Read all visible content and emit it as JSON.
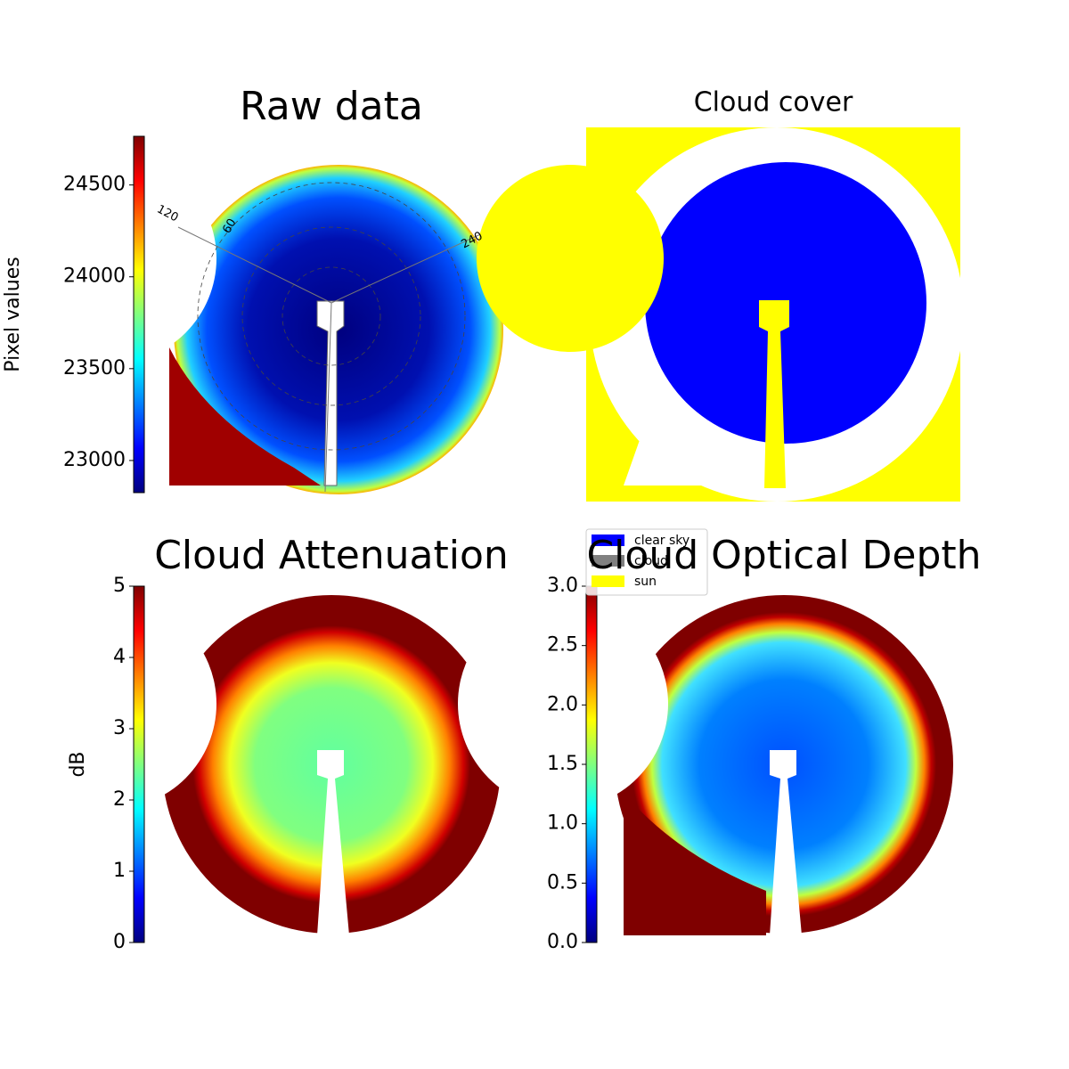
{
  "chart_data": [
    {
      "type": "image",
      "title": "Raw data",
      "annotations": [
        "120",
        "60",
        "240"
      ],
      "colorbar": {
        "label": "Pixel values",
        "lim": [
          22825,
          24765
        ],
        "ticks": [
          23000,
          23500,
          24000,
          24500
        ]
      }
    },
    {
      "type": "image",
      "title": "Cloud cover",
      "series": [
        {
          "name": "clear sky",
          "color": "#0000ff"
        },
        {
          "name": "cloud",
          "color": "#808080"
        },
        {
          "name": "sun",
          "color": "#ffff00"
        }
      ]
    },
    {
      "type": "image",
      "title": "Cloud Attenuation",
      "colorbar": {
        "label": "dB",
        "lim": [
          0,
          5
        ],
        "ticks": [
          0,
          1,
          2,
          3,
          4,
          5
        ]
      }
    },
    {
      "type": "image",
      "title": "Cloud Optical Depth",
      "colorbar": {
        "lim": [
          0,
          3
        ],
        "ticks": [
          {
            "value": 0,
            "label": "0.0"
          },
          {
            "value": 0.5,
            "label": "0.5"
          },
          {
            "value": 1,
            "label": "1.0"
          },
          {
            "value": 1.5,
            "label": "1.5"
          },
          {
            "value": 2,
            "label": "2.0"
          },
          {
            "value": 2.5,
            "label": "2.5"
          },
          {
            "value": 3,
            "label": "3.0"
          }
        ]
      }
    }
  ]
}
